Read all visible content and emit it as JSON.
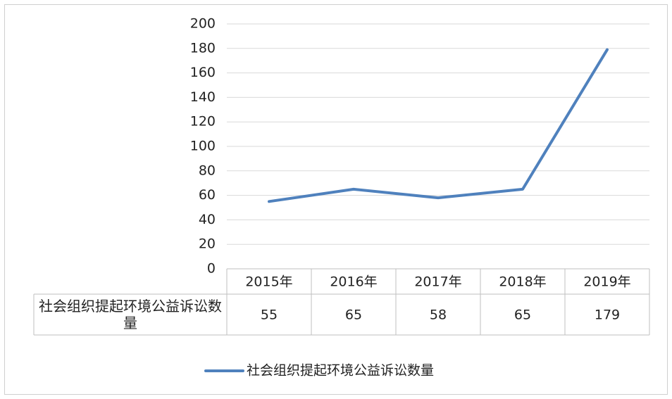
{
  "chart_data": {
    "type": "line",
    "categories": [
      "2015年",
      "2016年",
      "2017年",
      "2018年",
      "2019年"
    ],
    "series": [
      {
        "name": "社会组织提起环境公益诉讼数量",
        "color": "#4f81bd",
        "values": [
          55,
          65,
          58,
          65,
          179
        ]
      }
    ],
    "ylim": [
      0,
      200
    ],
    "yticks": [
      0,
      20,
      40,
      60,
      80,
      100,
      120,
      140,
      160,
      180,
      200
    ],
    "grid": true
  }
}
